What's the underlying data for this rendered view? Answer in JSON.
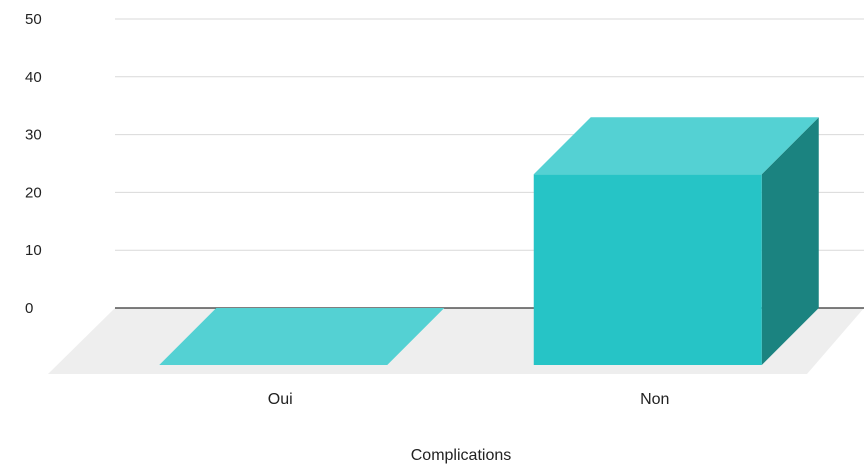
{
  "chart_data": {
    "type": "bar",
    "style": "3d",
    "categories": [
      "Oui",
      "Non"
    ],
    "values": [
      0,
      33
    ],
    "title": "",
    "xlabel": "Complications",
    "ylabel": "",
    "ylim": [
      0,
      50
    ],
    "yticks": [
      "0",
      "10",
      "20",
      "30",
      "40",
      "50"
    ],
    "grid": true,
    "legend": "none",
    "colors": {
      "front": "#26c4c6",
      "top": "#54d1d3",
      "side": "#1b8380",
      "floor": "#eeeeee",
      "grid": "#d9d9d9",
      "baseline": "#333333"
    }
  }
}
